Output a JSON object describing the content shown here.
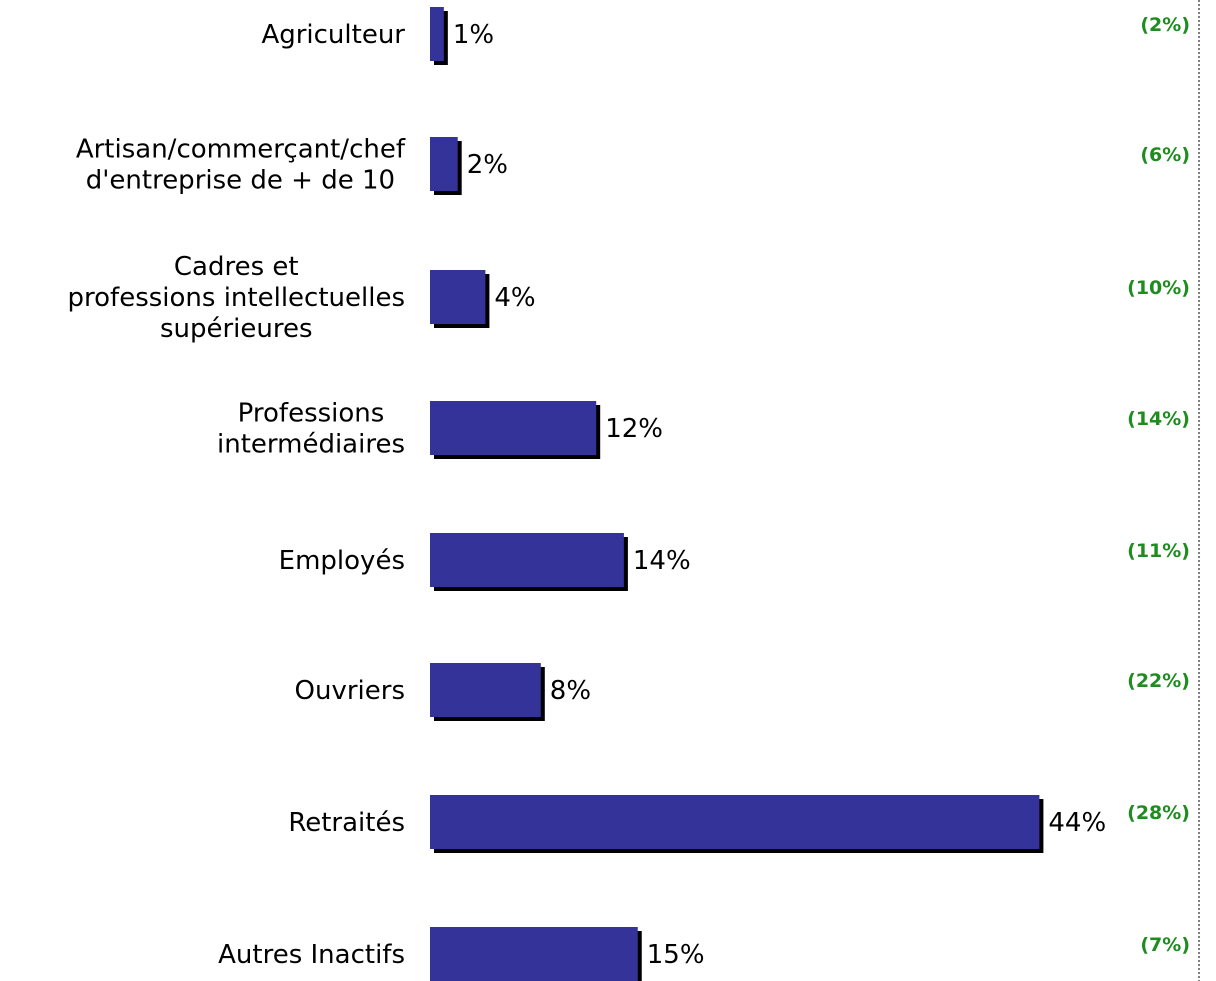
{
  "chart_data": {
    "type": "bar",
    "orientation": "horizontal",
    "categories": [
      [
        "Agriculteur"
      ],
      [
        "Artisan/commerçant/chef",
        "d'entreprise de + de 10"
      ],
      [
        "Cadres et",
        "professions intellectuelles",
        "supérieures"
      ],
      [
        "Professions",
        "intermédiaires"
      ],
      [
        "Employés"
      ],
      [
        "Ouvriers"
      ],
      [
        "Retraités"
      ],
      [
        "Autres Inactifs"
      ]
    ],
    "values": [
      1,
      2,
      4,
      12,
      14,
      8,
      44,
      15
    ],
    "value_labels": [
      "1%",
      "2%",
      "4%",
      "12%",
      "14%",
      "8%",
      "44%",
      "15%"
    ],
    "comparison_labels": [
      "(2%)",
      "(6%)",
      "(10%)",
      "(14%)",
      "(11%)",
      "(22%)",
      "(28%)",
      "(7%)"
    ],
    "xlim": [
      0,
      44
    ],
    "grid": false,
    "legend": "none",
    "colors": {
      "bar": "#333399",
      "bar_shadow": "#000000",
      "comparison_text": "#1e8c1e",
      "divider": "#555555"
    }
  }
}
